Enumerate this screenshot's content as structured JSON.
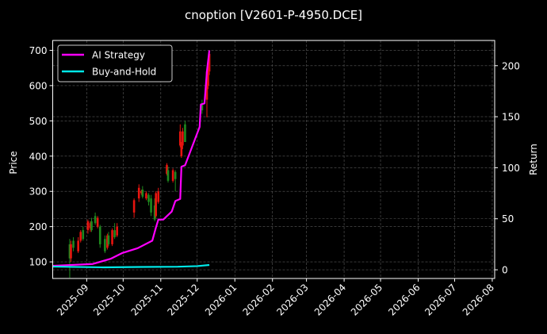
{
  "chart_data": {
    "type": "candlestick+line",
    "title": "cnoption [V2601-P-4950.DCE]",
    "ylabel_left": "Price",
    "ylabel_right": "Return",
    "xlim": [
      "2025-08-04",
      "2026-08-03"
    ],
    "ylim_left": [
      53,
      728
    ],
    "ylim_right": [
      -8.5,
      224.7
    ],
    "grid": true,
    "legend_position": "top-left",
    "x_ticks": [
      "2025-09",
      "2025-10",
      "2025-11",
      "2025-12",
      "2026-01",
      "2026-02",
      "2026-03",
      "2026-04",
      "2026-05",
      "2026-06",
      "2026-07",
      "2026-08"
    ],
    "y_ticks_left": [
      100,
      200,
      300,
      400,
      500,
      600,
      700
    ],
    "y_ticks_right": [
      0,
      50,
      100,
      150,
      200
    ],
    "colors": {
      "up": "#e8140f",
      "down": "#1e8a1e",
      "strategy": "#ff00ff",
      "buy_hold": "#00e8e8",
      "grid": "#5a5a5a"
    },
    "candles": [
      {
        "date": "2025-08-18",
        "o": 150,
        "h": 165,
        "l": 55,
        "c": 110
      },
      {
        "date": "2025-08-19",
        "o": 110,
        "h": 160,
        "l": 100,
        "c": 150
      },
      {
        "date": "2025-08-21",
        "o": 160,
        "h": 170,
        "l": 130,
        "c": 140
      },
      {
        "date": "2025-08-25",
        "o": 130,
        "h": 170,
        "l": 125,
        "c": 160
      },
      {
        "date": "2025-08-27",
        "o": 160,
        "h": 190,
        "l": 155,
        "c": 185
      },
      {
        "date": "2025-08-29",
        "o": 190,
        "h": 200,
        "l": 160,
        "c": 165
      },
      {
        "date": "2025-09-02",
        "o": 190,
        "h": 220,
        "l": 180,
        "c": 215
      },
      {
        "date": "2025-09-04",
        "o": 195,
        "h": 215,
        "l": 185,
        "c": 210
      },
      {
        "date": "2025-09-05",
        "o": 215,
        "h": 225,
        "l": 185,
        "c": 190
      },
      {
        "date": "2025-09-08",
        "o": 230,
        "h": 240,
        "l": 205,
        "c": 210
      },
      {
        "date": "2025-09-10",
        "o": 200,
        "h": 230,
        "l": 195,
        "c": 225
      },
      {
        "date": "2025-09-12",
        "o": 200,
        "h": 205,
        "l": 140,
        "c": 150
      },
      {
        "date": "2025-09-16",
        "o": 165,
        "h": 175,
        "l": 125,
        "c": 130
      },
      {
        "date": "2025-09-18",
        "o": 140,
        "h": 180,
        "l": 135,
        "c": 175
      },
      {
        "date": "2025-09-19",
        "o": 175,
        "h": 185,
        "l": 145,
        "c": 150
      },
      {
        "date": "2025-09-22",
        "o": 150,
        "h": 195,
        "l": 145,
        "c": 190
      },
      {
        "date": "2025-09-24",
        "o": 190,
        "h": 210,
        "l": 165,
        "c": 170
      },
      {
        "date": "2025-09-26",
        "o": 175,
        "h": 210,
        "l": 170,
        "c": 200
      },
      {
        "date": "2025-10-10",
        "o": 240,
        "h": 280,
        "l": 225,
        "c": 275
      },
      {
        "date": "2025-10-14",
        "o": 280,
        "h": 320,
        "l": 270,
        "c": 310
      },
      {
        "date": "2025-10-16",
        "o": 295,
        "h": 305,
        "l": 290,
        "c": 300
      },
      {
        "date": "2025-10-17",
        "o": 305,
        "h": 315,
        "l": 280,
        "c": 285
      },
      {
        "date": "2025-10-20",
        "o": 280,
        "h": 300,
        "l": 275,
        "c": 295
      },
      {
        "date": "2025-10-22",
        "o": 290,
        "h": 295,
        "l": 260,
        "c": 270
      },
      {
        "date": "2025-10-24",
        "o": 280,
        "h": 290,
        "l": 230,
        "c": 240
      },
      {
        "date": "2025-10-27",
        "o": 260,
        "h": 280,
        "l": 215,
        "c": 220
      },
      {
        "date": "2025-10-28",
        "o": 230,
        "h": 300,
        "l": 225,
        "c": 295
      },
      {
        "date": "2025-10-30",
        "o": 270,
        "h": 310,
        "l": 265,
        "c": 300
      },
      {
        "date": "2025-11-06",
        "o": 350,
        "h": 380,
        "l": 345,
        "c": 375
      },
      {
        "date": "2025-11-07",
        "o": 360,
        "h": 370,
        "l": 325,
        "c": 330
      },
      {
        "date": "2025-11-11",
        "o": 330,
        "h": 365,
        "l": 325,
        "c": 360
      },
      {
        "date": "2025-11-13",
        "o": 355,
        "h": 360,
        "l": 300,
        "c": 335
      },
      {
        "date": "2025-11-17",
        "o": 430,
        "h": 490,
        "l": 425,
        "c": 470
      },
      {
        "date": "2025-11-18",
        "o": 400,
        "h": 440,
        "l": 395,
        "c": 430
      },
      {
        "date": "2025-11-19",
        "o": 430,
        "h": 480,
        "l": 420,
        "c": 470
      },
      {
        "date": "2025-11-21",
        "o": 490,
        "h": 500,
        "l": 440,
        "c": 440
      },
      {
        "date": "2025-12-05",
        "o": 545,
        "h": 560,
        "l": 520,
        "c": 530
      },
      {
        "date": "2025-12-09",
        "o": 560,
        "h": 650,
        "l": 510,
        "c": 640
      },
      {
        "date": "2025-12-10",
        "o": 600,
        "h": 670,
        "l": 590,
        "c": 660
      },
      {
        "date": "2025-12-11",
        "o": 640,
        "h": 700,
        "l": 630,
        "c": 690
      }
    ],
    "series": [
      {
        "name": "AI Strategy",
        "axis": "right",
        "x": [
          "2025-08-04",
          "2025-09-06",
          "2025-09-21",
          "2025-09-30",
          "2025-10-13",
          "2025-10-25",
          "2025-10-28",
          "2025-10-30",
          "2025-11-03",
          "2025-11-10",
          "2025-11-13",
          "2025-11-17",
          "2025-11-18",
          "2025-11-21",
          "2025-12-03",
          "2025-12-04",
          "2025-12-07",
          "2025-12-09",
          "2025-12-11"
        ],
        "y": [
          3.9,
          5.7,
          10.9,
          16.3,
          21.2,
          28.5,
          41.4,
          49.2,
          49.2,
          57,
          67.4,
          69.4,
          101,
          102.4,
          140,
          162,
          163,
          194.4,
          215
        ]
      },
      {
        "name": "Buy-and-Hold",
        "axis": "right",
        "x": [
          "2025-08-04",
          "2025-09-15",
          "2025-10-15",
          "2025-11-15",
          "2025-12-01",
          "2025-12-11"
        ],
        "y": [
          3.1,
          2.4,
          2.8,
          3.0,
          3.6,
          4.7
        ]
      }
    ]
  }
}
